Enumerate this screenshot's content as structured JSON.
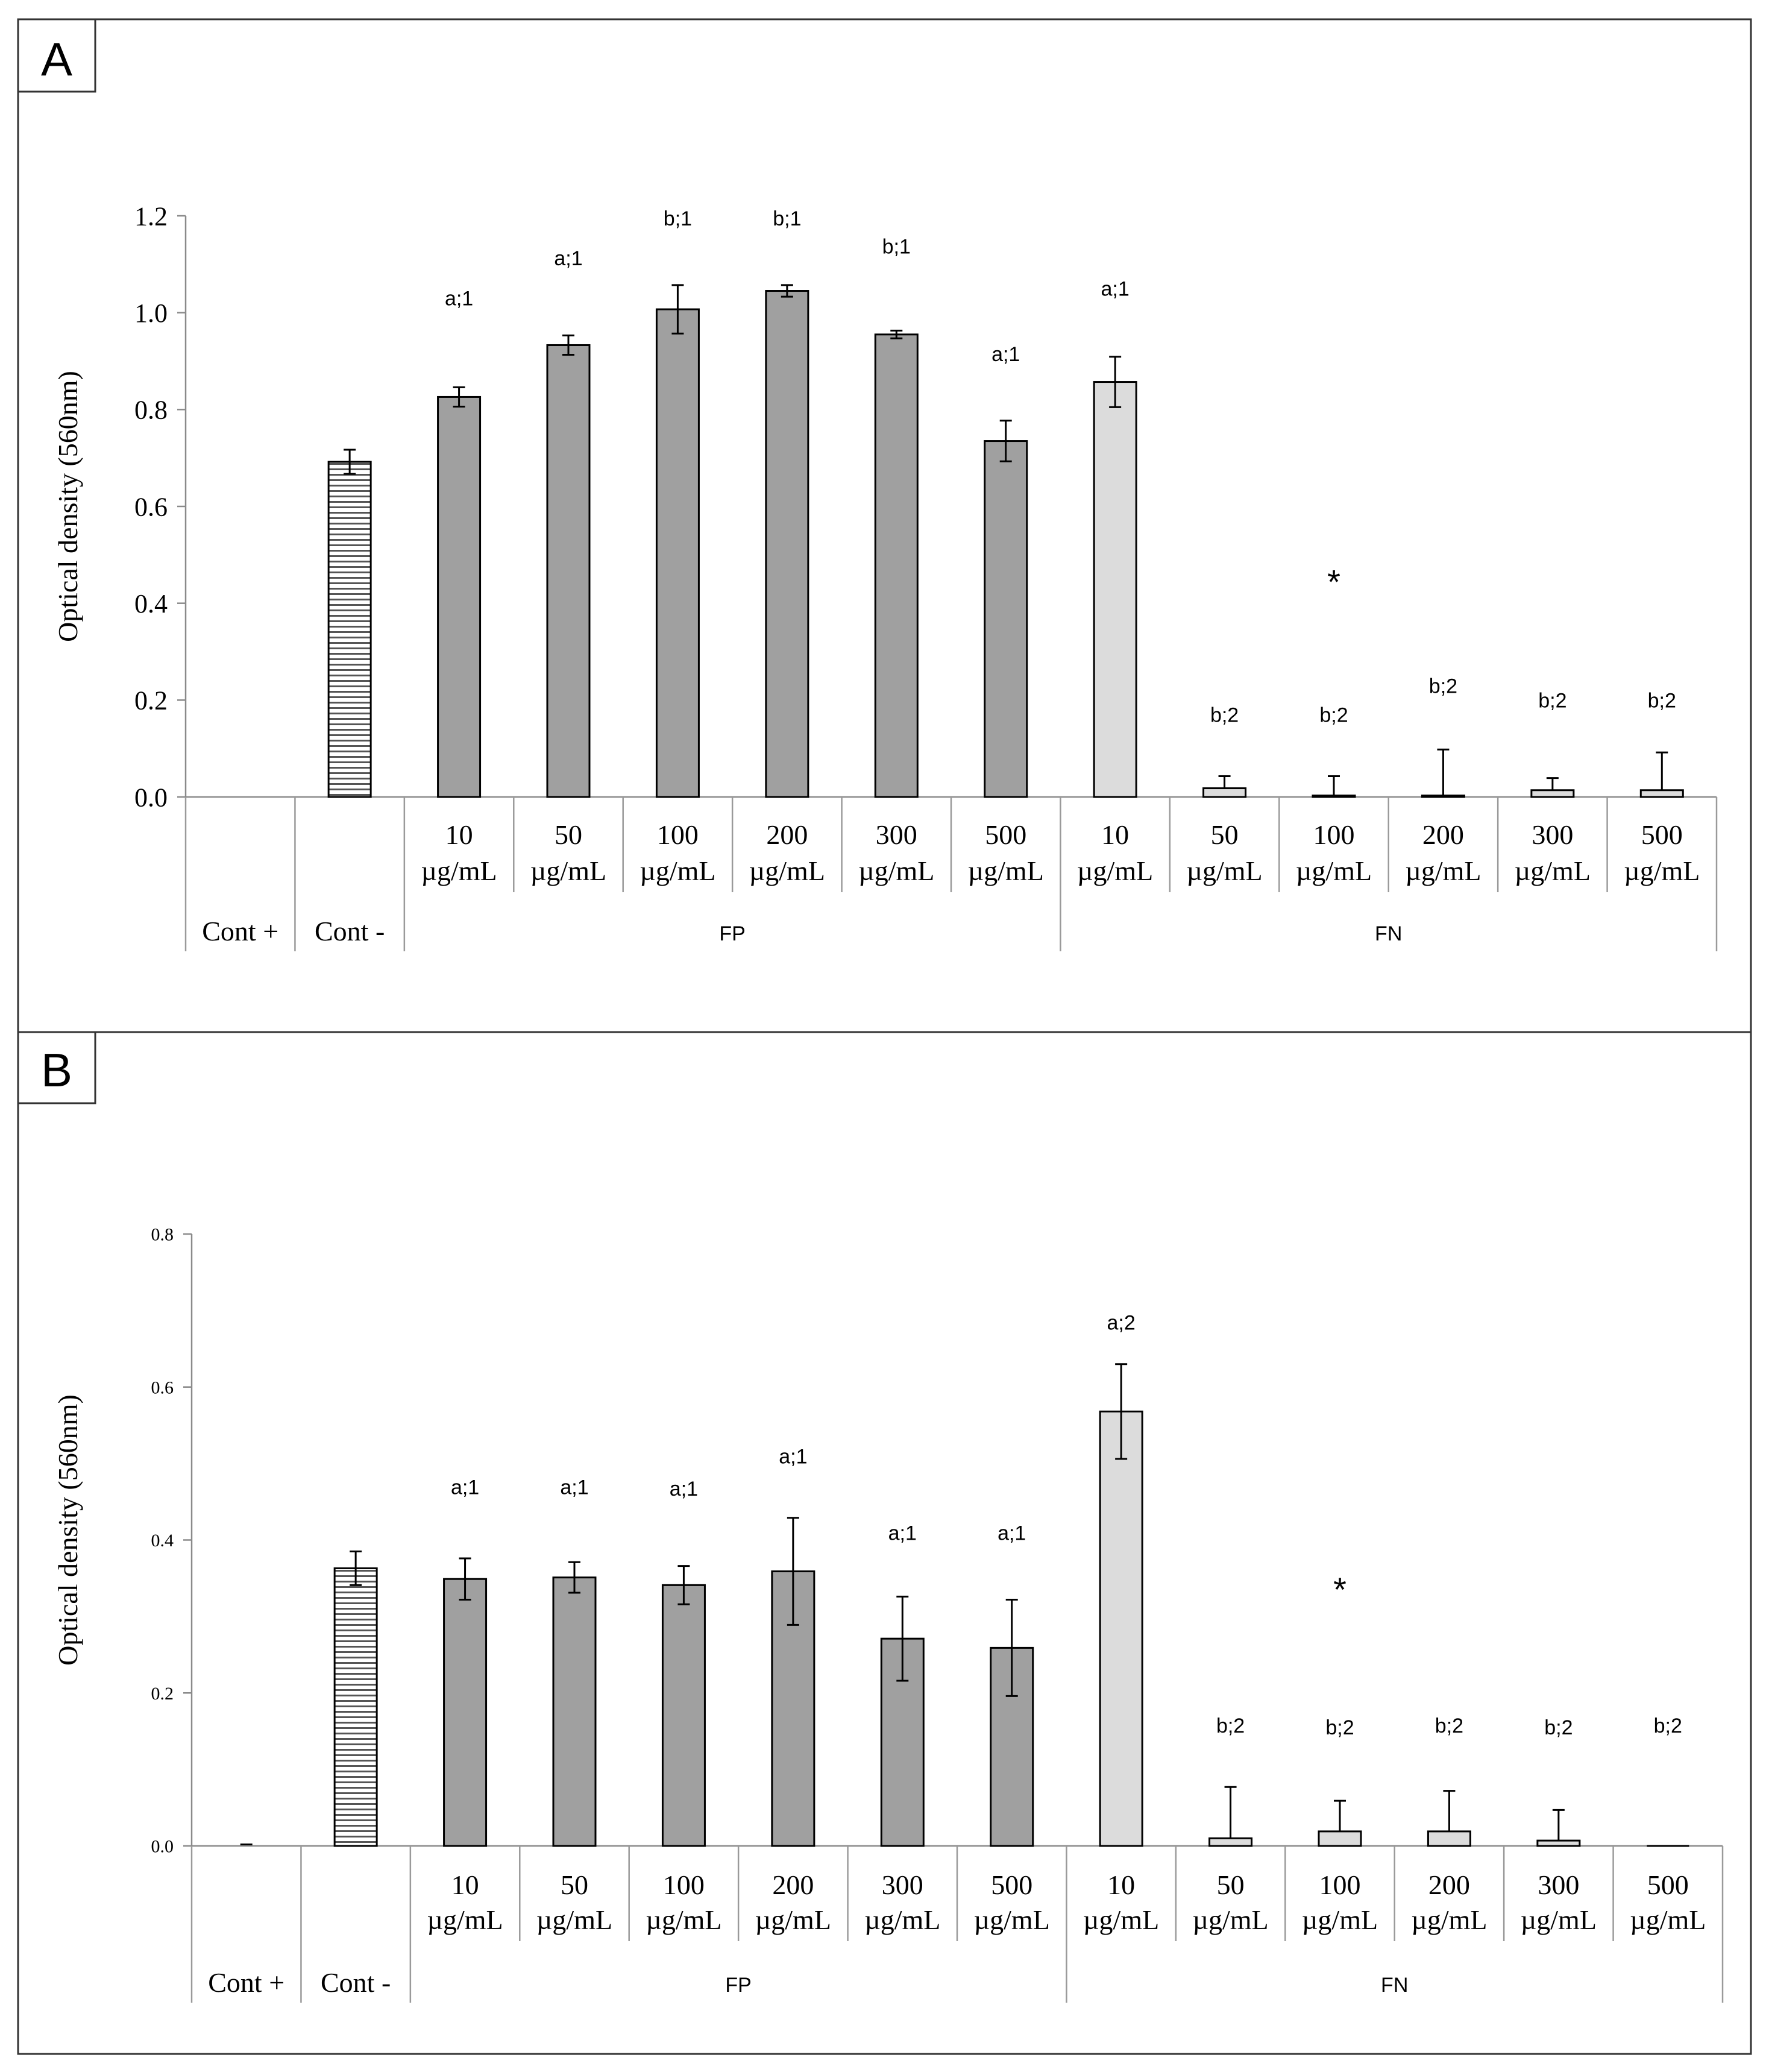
{
  "figure": {
    "panels": [
      "A",
      "B"
    ]
  },
  "chart_data": [
    {
      "panel_label": "A",
      "type": "bar",
      "ylabel": "Optical density (560nm)",
      "ylim": [
        0,
        1.2
      ],
      "yticks": [
        "0.0",
        "0.2",
        "0.4",
        "0.6",
        "0.8",
        "1.0",
        "1.2"
      ],
      "ytick_values": [
        0,
        0.2,
        0.4,
        0.6,
        0.8,
        1.0,
        1.2
      ],
      "categories": [
        {
          "line1": "",
          "line2": "",
          "group": "Cont +"
        },
        {
          "line1": "",
          "line2": "",
          "group": "Cont -"
        },
        {
          "line1": "10",
          "line2": "µg/mL",
          "group": "FP"
        },
        {
          "line1": "50",
          "line2": "µg/mL",
          "group": "FP"
        },
        {
          "line1": "100",
          "line2": "µg/mL",
          "group": "FP"
        },
        {
          "line1": "200",
          "line2": "µg/mL",
          "group": "FP"
        },
        {
          "line1": "300",
          "line2": "µg/mL",
          "group": "FP"
        },
        {
          "line1": "500",
          "line2": "µg/mL",
          "group": "FP"
        },
        {
          "line1": "10",
          "line2": "µg/mL",
          "group": "FN"
        },
        {
          "line1": "50",
          "line2": "µg/mL",
          "group": "FN"
        },
        {
          "line1": "100",
          "line2": "µg/mL",
          "group": "FN"
        },
        {
          "line1": "200",
          "line2": "µg/mL",
          "group": "FN"
        },
        {
          "line1": "300",
          "line2": "µg/mL",
          "group": "FN"
        },
        {
          "line1": "500",
          "line2": "µg/mL",
          "group": "FN"
        }
      ],
      "groups": [
        {
          "label": "Cont +",
          "span": 1
        },
        {
          "label": "Cont -",
          "span": 1
        },
        {
          "label": "FP",
          "span": 6
        },
        {
          "label": "FN",
          "span": 6
        }
      ],
      "values": [
        0,
        0.692,
        0.826,
        0.933,
        1.007,
        1.045,
        0.955,
        0.735,
        0.857,
        0.018,
        0.003,
        0.003,
        0.014,
        0.014
      ],
      "errors": [
        0,
        0.025,
        0.02,
        0.02,
        0.05,
        0.012,
        0.008,
        0.042,
        0.052,
        0.025,
        0.04,
        0.095,
        0.025,
        0.078
      ],
      "styles": [
        "pos",
        "neg",
        "fp",
        "fp",
        "fp",
        "fp",
        "fp",
        "fp",
        "fn",
        "fn",
        "fn",
        "fn",
        "fn",
        "fn"
      ],
      "annotations": [
        {
          "index": 2,
          "text": "a;1",
          "y": 1.015
        },
        {
          "index": 3,
          "text": "a;1",
          "y": 1.098
        },
        {
          "index": 4,
          "text": "b;1",
          "y": 1.18
        },
        {
          "index": 5,
          "text": "b;1",
          "y": 1.18
        },
        {
          "index": 6,
          "text": "b;1",
          "y": 1.122
        },
        {
          "index": 7,
          "text": "a;1",
          "y": 0.9
        },
        {
          "index": 8,
          "text": "a;1",
          "y": 1.035
        },
        {
          "index": 9,
          "text": "b;2",
          "y": 0.155
        },
        {
          "index": 10,
          "text": "b;2",
          "y": 0.155
        },
        {
          "index": 11,
          "text": "b;2",
          "y": 0.215
        },
        {
          "index": 12,
          "text": "b;2",
          "y": 0.185
        },
        {
          "index": 13,
          "text": "b;2",
          "y": 0.185
        }
      ],
      "star": {
        "index": 10,
        "text": "*",
        "y": 0.42
      }
    },
    {
      "panel_label": "B",
      "type": "bar",
      "ylabel": "Optical density (560nm)",
      "ylim": [
        0,
        0.8
      ],
      "yticks": [
        "0.0",
        "0.2",
        "0.4",
        "0.6",
        "0.8"
      ],
      "ytick_values": [
        0,
        0.2,
        0.4,
        0.6,
        0.8
      ],
      "categories": [
        {
          "line1": "",
          "line2": "",
          "group": "Cont +"
        },
        {
          "line1": "",
          "line2": "",
          "group": "Cont -"
        },
        {
          "line1": "10",
          "line2": "µg/mL",
          "group": "FP"
        },
        {
          "line1": "50",
          "line2": "µg/mL",
          "group": "FP"
        },
        {
          "line1": "100",
          "line2": "µg/mL",
          "group": "FP"
        },
        {
          "line1": "200",
          "line2": "µg/mL",
          "group": "FP"
        },
        {
          "line1": "300",
          "line2": "µg/mL",
          "group": "FP"
        },
        {
          "line1": "500",
          "line2": "µg/mL",
          "group": "FP"
        },
        {
          "line1": "10",
          "line2": "µg/mL",
          "group": "FN"
        },
        {
          "line1": "50",
          "line2": "µg/mL",
          "group": "FN"
        },
        {
          "line1": "100",
          "line2": "µg/mL",
          "group": "FN"
        },
        {
          "line1": "200",
          "line2": "µg/mL",
          "group": "FN"
        },
        {
          "line1": "300",
          "line2": "µg/mL",
          "group": "FN"
        },
        {
          "line1": "500",
          "line2": "µg/mL",
          "group": "FN"
        }
      ],
      "groups": [
        {
          "label": "Cont +",
          "span": 1
        },
        {
          "label": "Cont -",
          "span": 1
        },
        {
          "label": "FP",
          "span": 6
        },
        {
          "label": "FN",
          "span": 6
        }
      ],
      "values": [
        0.002,
        0.363,
        0.349,
        0.351,
        0.341,
        0.359,
        0.271,
        0.259,
        0.568,
        0.01,
        0.019,
        0.019,
        0.007,
        0
      ],
      "errors": [
        0,
        0.022,
        0.027,
        0.02,
        0.025,
        0.07,
        0.055,
        0.063,
        0.062,
        0.067,
        0.04,
        0.053,
        0.04,
        0
      ],
      "styles": [
        "pos",
        "neg",
        "fp",
        "fp",
        "fp",
        "fp",
        "fp",
        "fp",
        "fn",
        "fn",
        "fn",
        "fn",
        "fn",
        "fn"
      ],
      "annotations": [
        {
          "index": 2,
          "text": "a;1",
          "y": 0.46
        },
        {
          "index": 3,
          "text": "a;1",
          "y": 0.46
        },
        {
          "index": 4,
          "text": "a;1",
          "y": 0.458
        },
        {
          "index": 5,
          "text": "a;1",
          "y": 0.5
        },
        {
          "index": 6,
          "text": "a;1",
          "y": 0.4
        },
        {
          "index": 7,
          "text": "a;1",
          "y": 0.4
        },
        {
          "index": 8,
          "text": "a;2",
          "y": 0.675
        },
        {
          "index": 9,
          "text": "b;2",
          "y": 0.148
        },
        {
          "index": 10,
          "text": "b;2",
          "y": 0.146
        },
        {
          "index": 11,
          "text": "b;2",
          "y": 0.148
        },
        {
          "index": 12,
          "text": "b;2",
          "y": 0.146
        },
        {
          "index": 13,
          "text": "b;2",
          "y": 0.148
        }
      ],
      "star": {
        "index": 10,
        "text": "*",
        "y": 0.32
      }
    }
  ]
}
